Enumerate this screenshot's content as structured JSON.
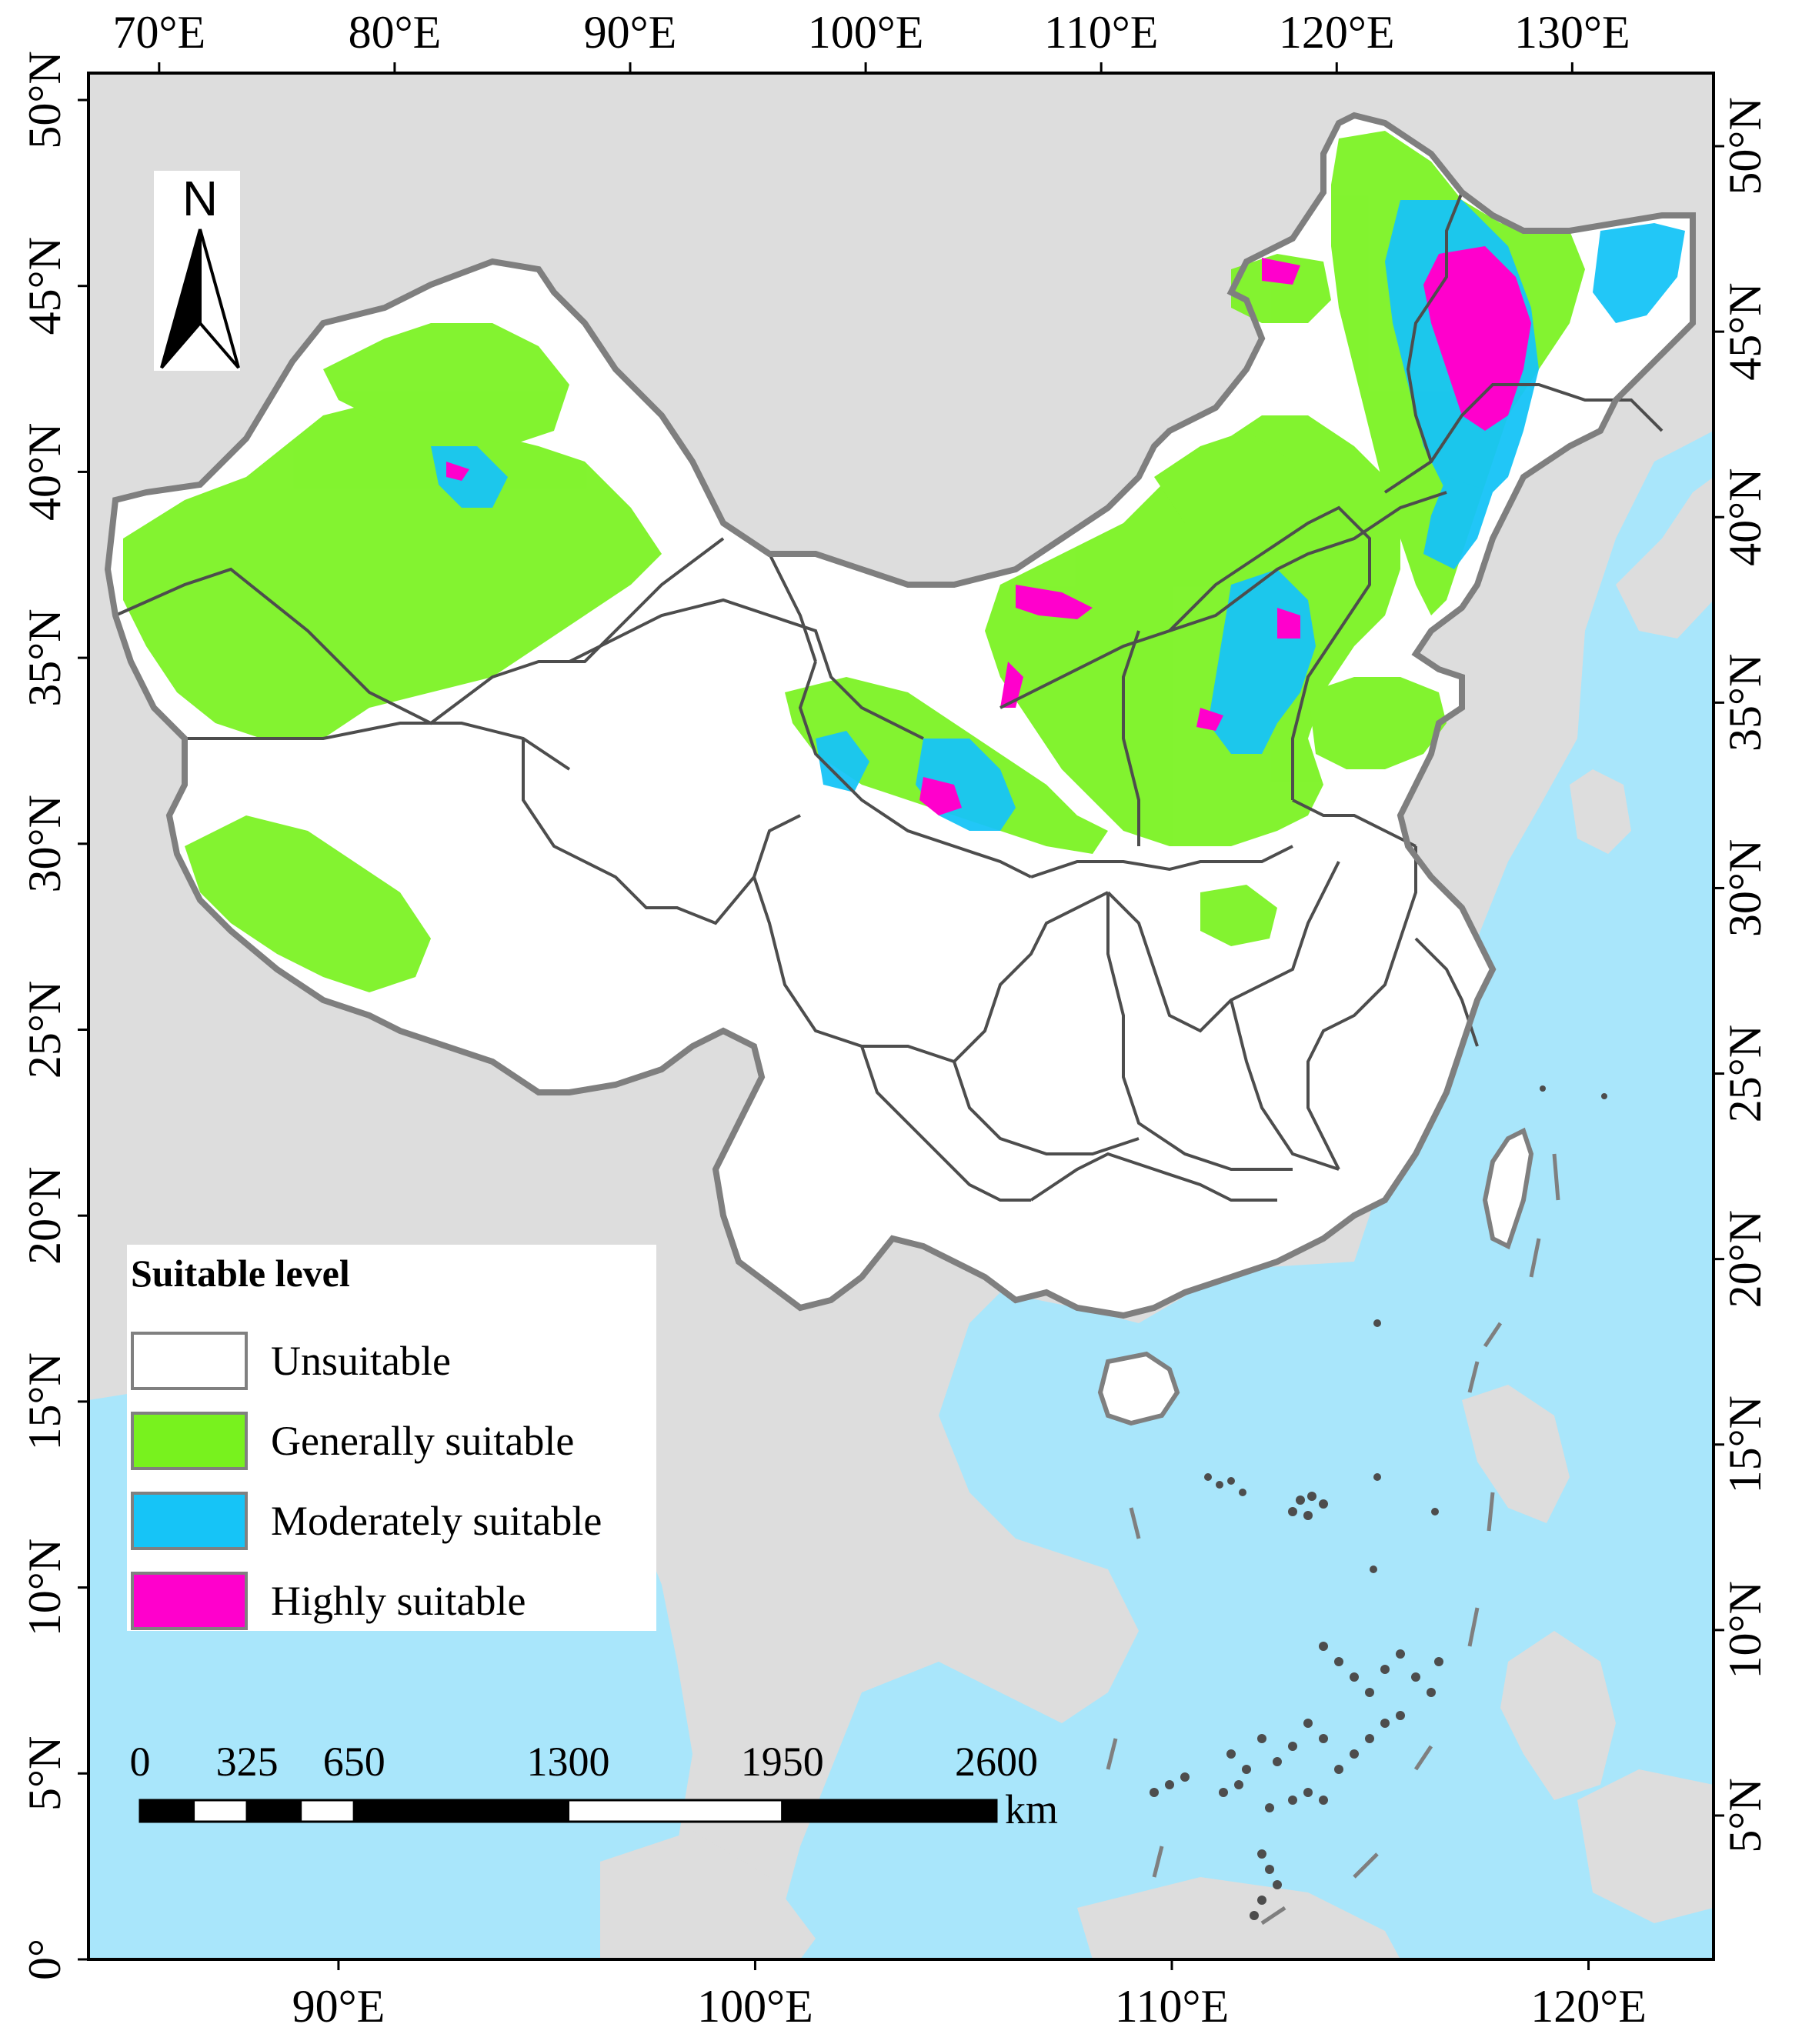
{
  "map": {
    "colors": {
      "ocean": "#a9e6fb",
      "land_background": "#dddddd",
      "country_fill": "#ffffff",
      "boundary": "#7f7f7f",
      "province_boundary": "#4d4d4d",
      "generally": "#78f21e",
      "moderately": "#16c4f7",
      "highly": "#ff00cc"
    },
    "top_axis": {
      "labels": [
        "70°E",
        "80°E",
        "90°E",
        "100°E",
        "110°E",
        "120°E",
        "130°E"
      ],
      "values": [
        70,
        80,
        90,
        100,
        110,
        120,
        130
      ],
      "range": [
        67,
        136
      ]
    },
    "bottom_axis": {
      "labels": [
        "90°E",
        "100°E",
        "110°E",
        "120°E"
      ],
      "values": [
        90,
        100,
        110,
        120
      ],
      "range": [
        84,
        123
      ]
    },
    "left_axis": {
      "labels": [
        "50°N",
        "45°N",
        "40°N",
        "35°N",
        "30°N",
        "25°N",
        "20°N",
        "15°N",
        "10°N",
        "5°N",
        "0°"
      ],
      "values": [
        50,
        45,
        40,
        35,
        30,
        25,
        20,
        15,
        10,
        5,
        0
      ],
      "range": [
        0,
        50
      ]
    },
    "right_axis": {
      "labels": [
        "50°N",
        "45°N",
        "40°N",
        "35°N",
        "30°N",
        "25°N",
        "20°N",
        "15°N",
        "10°N",
        "5°N"
      ],
      "values": [
        50,
        45,
        40,
        35,
        30,
        25,
        20,
        15,
        10,
        5
      ]
    },
    "north_arrow": {
      "label": "N"
    },
    "legend": {
      "title": "Suitable level",
      "items": [
        {
          "label": "Unsuitable",
          "color": "#ffffff"
        },
        {
          "label": "Generally suitable",
          "color": "#78f21e"
        },
        {
          "label": "Moderately suitable",
          "color": "#16c4f7"
        },
        {
          "label": "Highly suitable",
          "color": "#ff00cc"
        }
      ]
    },
    "scale_bar": {
      "labels": [
        "0",
        "325",
        "650",
        "1300",
        "1950",
        "2600"
      ],
      "values": [
        0,
        325,
        650,
        1300,
        1950,
        2600
      ],
      "unit": "km"
    }
  }
}
